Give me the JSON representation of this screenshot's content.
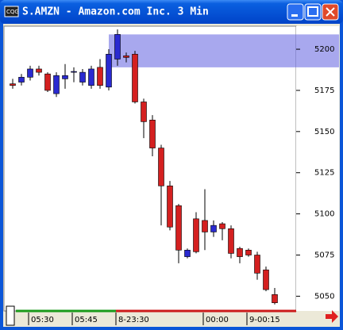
{
  "chart_data": {
    "type": "candlestick",
    "title": "S.AMZN - Amazon.com Inc. 3 Min",
    "categories": [
      null,
      null,
      "05:30",
      null,
      null,
      null,
      null,
      "05:45",
      null,
      null,
      null,
      null,
      "8-23:30",
      null,
      null,
      null,
      null,
      null,
      null,
      null,
      null,
      null,
      "00:00",
      null,
      null,
      null,
      null,
      "9-00:15",
      null,
      null,
      null
    ],
    "open": [
      5179,
      5180,
      5183,
      5188,
      5185,
      5173,
      5182,
      5186,
      5180,
      5178,
      5189,
      5177,
      5194,
      5196,
      5197,
      5168,
      5157,
      5140,
      5117,
      5105,
      5074,
      5097,
      5096,
      5089,
      5094,
      5091,
      5079,
      5078,
      5075,
      5066,
      5051
    ],
    "high": [
      5182,
      5185,
      5190,
      5190,
      5186,
      5186,
      5191,
      5189,
      5188,
      5190,
      5194,
      5200,
      5212,
      5198,
      5199,
      5170,
      5160,
      5142,
      5120,
      5106,
      5079,
      5101,
      5115,
      5096,
      5095,
      5093,
      5080,
      5079,
      5077,
      5068,
      5055
    ],
    "low": [
      5176,
      5178,
      5181,
      5184,
      5174,
      5171,
      5176,
      5180,
      5178,
      5176,
      5176,
      5175,
      5190,
      5192,
      5167,
      5146,
      5135,
      5093,
      5090,
      5070,
      5073,
      5076,
      5078,
      5086,
      5084,
      5073,
      5070,
      5074,
      5060,
      5053,
      5045
    ],
    "close": [
      5178,
      5183,
      5188,
      5186,
      5175,
      5184,
      5184,
      5186.5,
      5186,
      5188,
      5178,
      5197,
      5209,
      5195,
      5168,
      5156,
      5140,
      5117,
      5092,
      5078,
      5078,
      5077,
      5089,
      5093,
      5091,
      5076,
      5074,
      5075,
      5064,
      5054,
      5046
    ],
    "up_color": "#2a2ad0",
    "down_color": "#d42020",
    "highlight_band": [
      5189,
      5209
    ],
    "highlight_color": "#6060e0",
    "ylim": [
      5042,
      5214
    ],
    "yticks": [
      5050,
      5075,
      5100,
      5125,
      5150,
      5175,
      5200
    ]
  }
}
